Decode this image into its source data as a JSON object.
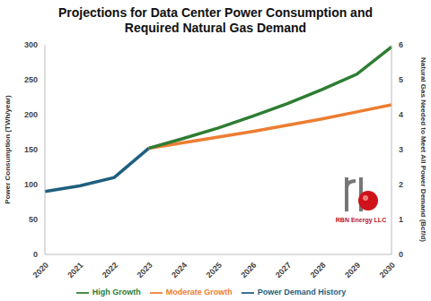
{
  "chart_data": {
    "type": "line",
    "title": "Projections for Data Center Power Consumption and Required Natural Gas Demand",
    "y_label": "Power Consumption (TWh/year)",
    "y2_label": "Natural Gas Needed to Meet All Power Demand (Bcf/d)",
    "categories": [
      "2020",
      "2021",
      "2022",
      "2023",
      "2024",
      "2025",
      "2026",
      "2027",
      "2028",
      "2029",
      "2030"
    ],
    "series": [
      {
        "name": "Power Demand History",
        "color": "#1f5f7f",
        "values": [
          90,
          98,
          110,
          152,
          null,
          null,
          null,
          null,
          null,
          null,
          null
        ]
      },
      {
        "name": "Moderate Growth",
        "color": "#ed7d31",
        "values": [
          null,
          null,
          null,
          152,
          160,
          168,
          176,
          185,
          194,
          204,
          214
        ]
      },
      {
        "name": "High Growth",
        "color": "#2e7d32",
        "values": [
          null,
          null,
          null,
          152,
          166,
          181,
          198,
          216,
          236,
          258,
          297
        ]
      }
    ],
    "ylim": [
      0,
      300
    ],
    "yticks": [
      0,
      50,
      100,
      150,
      200,
      250,
      300
    ],
    "y2lim": [
      0,
      6
    ],
    "y2ticks": [
      0,
      1,
      2,
      3,
      4,
      5,
      6
    ],
    "grid": false,
    "legend": "bottom",
    "annotations": [
      "RBN Energy LLC"
    ]
  }
}
